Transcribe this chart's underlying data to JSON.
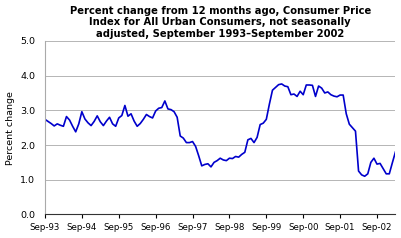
{
  "title": "Percent change from 12 months ago, Consumer Price\nIndex for All Urban Consumers, not seasonally\nadjusted, September 1993–September 2002",
  "ylabel": "Percent change",
  "ylim": [
    0.0,
    5.0
  ],
  "yticks": [
    0.0,
    1.0,
    2.0,
    3.0,
    4.0,
    5.0
  ],
  "line_color": "#0000cc",
  "line_width": 1.2,
  "background_color": "#ffffff",
  "plot_bg_color": "#ffffff",
  "grid_color": "#aaaaaa",
  "xtick_labels": [
    "Sep-93",
    "Sep-94",
    "Sep-95",
    "Sep-96",
    "Sep-97",
    "Sep-98",
    "Sep-99",
    "Sep-00",
    "Sep-01",
    "Sep-02"
  ],
  "values": [
    2.74,
    2.68,
    2.62,
    2.55,
    2.61,
    2.57,
    2.54,
    2.82,
    2.72,
    2.54,
    2.38,
    2.61,
    2.96,
    2.75,
    2.64,
    2.56,
    2.68,
    2.84,
    2.67,
    2.56,
    2.69,
    2.8,
    2.61,
    2.54,
    2.78,
    2.85,
    3.14,
    2.83,
    2.9,
    2.69,
    2.54,
    2.62,
    2.74,
    2.88,
    2.82,
    2.78,
    2.98,
    3.06,
    3.08,
    3.27,
    3.04,
    3.02,
    2.96,
    2.8,
    2.26,
    2.2,
    2.07,
    2.07,
    2.1,
    1.96,
    1.69,
    1.4,
    1.44,
    1.46,
    1.37,
    1.5,
    1.55,
    1.62,
    1.57,
    1.55,
    1.62,
    1.61,
    1.67,
    1.65,
    1.73,
    1.79,
    2.15,
    2.19,
    2.07,
    2.22,
    2.59,
    2.63,
    2.74,
    3.18,
    3.58,
    3.66,
    3.74,
    3.76,
    3.7,
    3.68,
    3.45,
    3.47,
    3.4,
    3.55,
    3.45,
    3.73,
    3.73,
    3.72,
    3.4,
    3.7,
    3.64,
    3.5,
    3.53,
    3.45,
    3.41,
    3.39,
    3.44,
    3.44,
    2.9,
    2.6,
    2.5,
    2.4,
    1.25,
    1.14,
    1.1,
    1.17,
    1.5,
    1.62,
    1.45,
    1.47,
    1.32,
    1.17,
    1.17,
    1.49,
    1.8
  ]
}
